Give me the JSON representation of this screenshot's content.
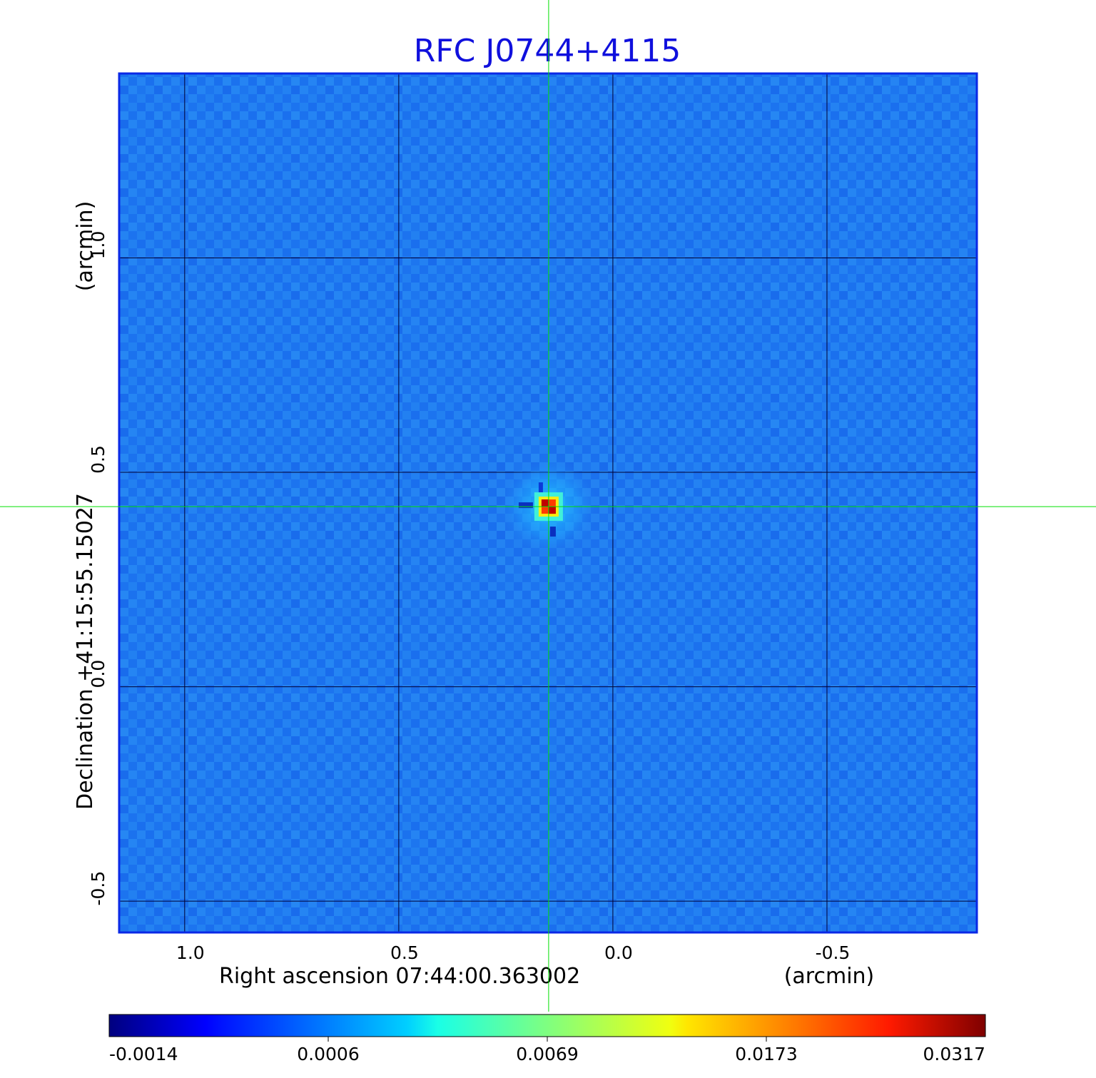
{
  "chart_data": {
    "type": "heatmap",
    "title": "RFC J0744+4115",
    "xlabel": "Right ascension  07:44:00.363002",
    "xunit": "(arcmin)",
    "ylabel": "Declination  +41:15:55.15027",
    "yunit": "(arcmin)",
    "x_ticks": [
      {
        "value": 1.0,
        "label": "1.0"
      },
      {
        "value": 0.5,
        "label": "0.5"
      },
      {
        "value": 0.0,
        "label": "0.0"
      },
      {
        "value": -0.5,
        "label": "-0.5"
      }
    ],
    "y_ticks": [
      {
        "value": 1.0,
        "label": "1.0"
      },
      {
        "value": 0.5,
        "label": "0.5"
      },
      {
        "value": 0.0,
        "label": "0.0"
      },
      {
        "value": -0.5,
        "label": "-0.5"
      }
    ],
    "xlim": [
      1.153,
      -0.85
    ],
    "ylim": [
      -0.573,
      1.43
    ],
    "grid": true,
    "colormap": "jet",
    "colorbar": {
      "orientation": "horizontal",
      "placement": "bottom",
      "ticks": [
        {
          "value": -0.0014,
          "label": "-0.0014"
        },
        {
          "value": 0.0006,
          "label": "0.0006"
        },
        {
          "value": 0.0069,
          "label": "0.0069"
        },
        {
          "value": 0.0173,
          "label": "0.0173"
        },
        {
          "value": 0.0317,
          "label": "0.0317"
        }
      ],
      "range": [
        -0.0014,
        0.0317
      ]
    },
    "source": {
      "x": 0.15,
      "y": 0.42,
      "peak_value": 0.0317
    },
    "crosshair": {
      "x": 0.15,
      "y": 0.42,
      "color": "#00e000"
    },
    "background_value": 0.0003,
    "colors": {
      "title": "#1010dd",
      "frame": "#0a28e6",
      "grid": "#000033"
    }
  }
}
